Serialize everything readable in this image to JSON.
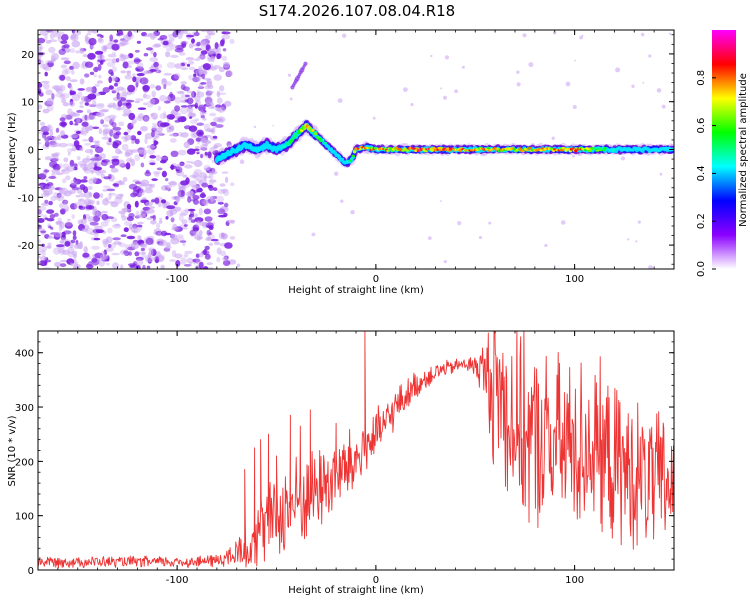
{
  "chart_data": [
    {
      "type": "heatmap",
      "title": "S174.2026.107.08.04.R18",
      "xlabel": "Height of straight line (km)",
      "ylabel": "Frequency (Hz)",
      "xlim": [
        -170,
        150
      ],
      "ylim": [
        -25,
        25
      ],
      "xticks": [
        "-100",
        "0",
        "100"
      ],
      "xtick_values": [
        -100,
        0,
        100
      ],
      "yticks": [
        "20",
        "10",
        "0",
        "-10",
        "-20"
      ],
      "ytick_values": [
        20,
        10,
        0,
        -10,
        -20
      ],
      "signal_track": {
        "x": [
          -80,
          -75,
          -70,
          -65,
          -60,
          -55,
          -50,
          -45,
          -40,
          -35,
          -30,
          -25,
          -20,
          -15,
          -12,
          -10,
          -5,
          0,
          10,
          20,
          40,
          60,
          80,
          100,
          120,
          150
        ],
        "freq": [
          -2,
          -1,
          0,
          1,
          0,
          1,
          0,
          1,
          3,
          5,
          3,
          1,
          -1,
          -3,
          -2,
          0,
          0.5,
          0,
          0,
          0,
          0,
          0,
          0,
          0,
          0,
          0
        ],
        "amplitude": [
          0.2,
          0.25,
          0.35,
          0.4,
          0.35,
          0.4,
          0.35,
          0.45,
          0.5,
          0.75,
          0.6,
          0.45,
          0.3,
          0.35,
          0.55,
          0.8,
          0.75,
          0.75,
          0.7,
          0.85,
          0.8,
          0.7,
          0.7,
          0.8,
          0.4,
          0.35
        ]
      },
      "noise_region_x": [
        -170,
        -72
      ],
      "colorbar": {
        "label": "Normalized spectral amplitude",
        "range": [
          0,
          1
        ],
        "ticks": [
          "0.0",
          "0.2",
          "0.4",
          "0.6",
          "0.8"
        ],
        "tick_values": [
          0,
          0.2,
          0.4,
          0.6,
          0.8
        ],
        "colormap": [
          "#ffffff",
          "#8b00ff",
          "#0000ff",
          "#00ffff",
          "#00ff00",
          "#ffff00",
          "#ff0000",
          "#ff00ff"
        ]
      }
    },
    {
      "type": "line",
      "xlabel": "Height of straight line (km)",
      "ylabel": "SNR (10 * v/v)",
      "xlim": [
        -170,
        150
      ],
      "ylim": [
        0,
        440
      ],
      "xticks": [
        "-100",
        "0",
        "100"
      ],
      "xtick_values": [
        -100,
        0,
        100
      ],
      "yticks": [
        "0",
        "100",
        "200",
        "300",
        "400"
      ],
      "ytick_values": [
        0,
        100,
        200,
        300,
        400
      ],
      "color": "#ee3333",
      "series": [
        {
          "name": "SNR",
          "x": [
            -170,
            -150,
            -130,
            -110,
            -90,
            -80,
            -72,
            -68,
            -65,
            -60,
            -55,
            -50,
            -45,
            -40,
            -35,
            -30,
            -25,
            -20,
            -15,
            -10,
            -8,
            -5,
            0,
            5,
            10,
            20,
            30,
            40,
            45,
            50,
            55,
            60,
            70,
            80,
            90,
            100,
            110,
            120,
            130,
            140,
            150
          ],
          "center": [
            15,
            15,
            15,
            15,
            15,
            18,
            25,
            35,
            50,
            70,
            85,
            100,
            110,
            125,
            135,
            150,
            160,
            175,
            185,
            200,
            215,
            230,
            245,
            270,
            300,
            340,
            365,
            375,
            380,
            375,
            365,
            340,
            270,
            235,
            230,
            230,
            230,
            190,
            175,
            160,
            160
          ],
          "spread": [
            12,
            12,
            12,
            12,
            12,
            15,
            25,
            45,
            60,
            75,
            80,
            90,
            95,
            100,
            95,
            95,
            90,
            85,
            80,
            75,
            70,
            65,
            55,
            50,
            40,
            30,
            20,
            15,
            15,
            25,
            70,
            190,
            200,
            195,
            190,
            190,
            180,
            170,
            160,
            150,
            145
          ],
          "spikes": [
            [
              -5.5,
              440
            ],
            [
              -20,
              270
            ],
            [
              -33,
              295
            ],
            [
              -38,
              265
            ],
            [
              -43,
              285
            ],
            [
              -50,
              210
            ],
            [
              -54,
              250
            ],
            [
              -58,
              240
            ],
            [
              -61,
              225
            ],
            [
              -66,
              185
            ]
          ]
        }
      ]
    }
  ]
}
